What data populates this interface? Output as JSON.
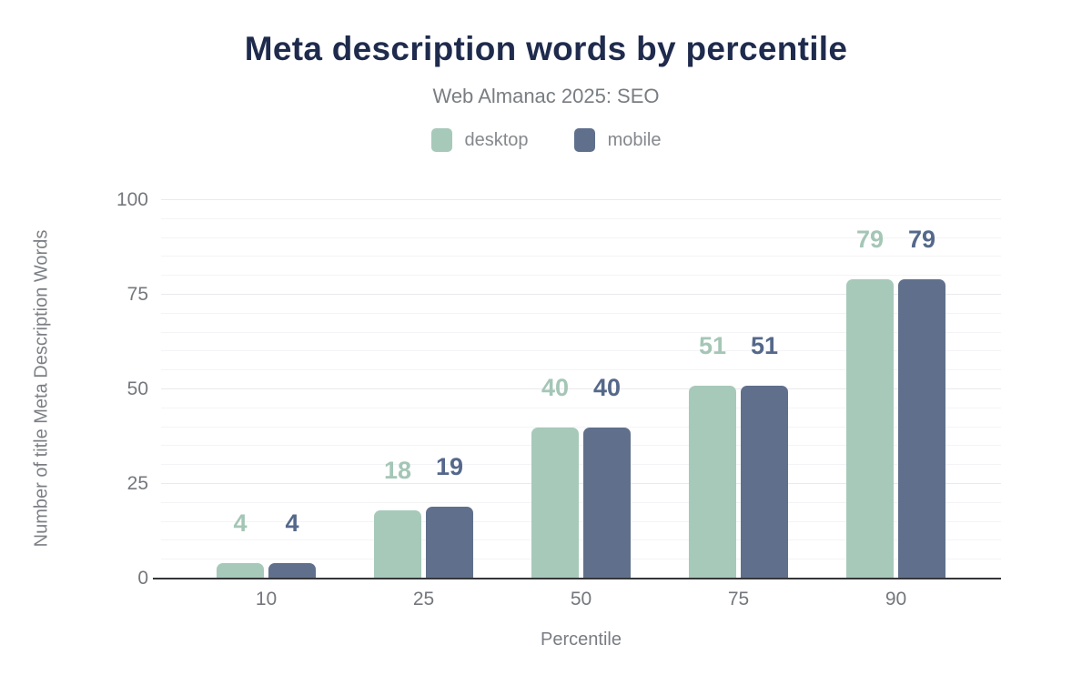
{
  "chart_data": {
    "type": "bar",
    "title": "Meta description words by percentile",
    "subtitle": "Web Almanac 2025: SEO",
    "categories": [
      "10",
      "25",
      "50",
      "75",
      "90"
    ],
    "series": [
      {
        "name": "desktop",
        "color": "#a7c9ba",
        "label_color": "#a4c6b6",
        "values": [
          4,
          18,
          40,
          51,
          79
        ]
      },
      {
        "name": "mobile",
        "color": "#60708c",
        "label_color": "#55688b",
        "values": [
          4,
          19,
          40,
          51,
          79
        ]
      }
    ],
    "xlabel": "Percentile",
    "ylabel": "Number of title Meta Description Words",
    "ylim": [
      0,
      100
    ],
    "yticks": [
      0,
      25,
      50,
      75,
      100
    ],
    "grid": {
      "axis": "y",
      "minor_step": 5,
      "major_step": 25
    },
    "legend_position": "top",
    "bar_value_labels": true
  },
  "colors": {
    "background": "#ffffff",
    "title_text": "#1f2b4d",
    "subtitle_text": "#797d82",
    "legend_text": "#85888d",
    "tick_text": "#74777c",
    "axis_title_text": "#797d82",
    "axis_line": "#353638",
    "grid_minor": "#f4f4f6",
    "grid_major": "#e9eaee"
  }
}
